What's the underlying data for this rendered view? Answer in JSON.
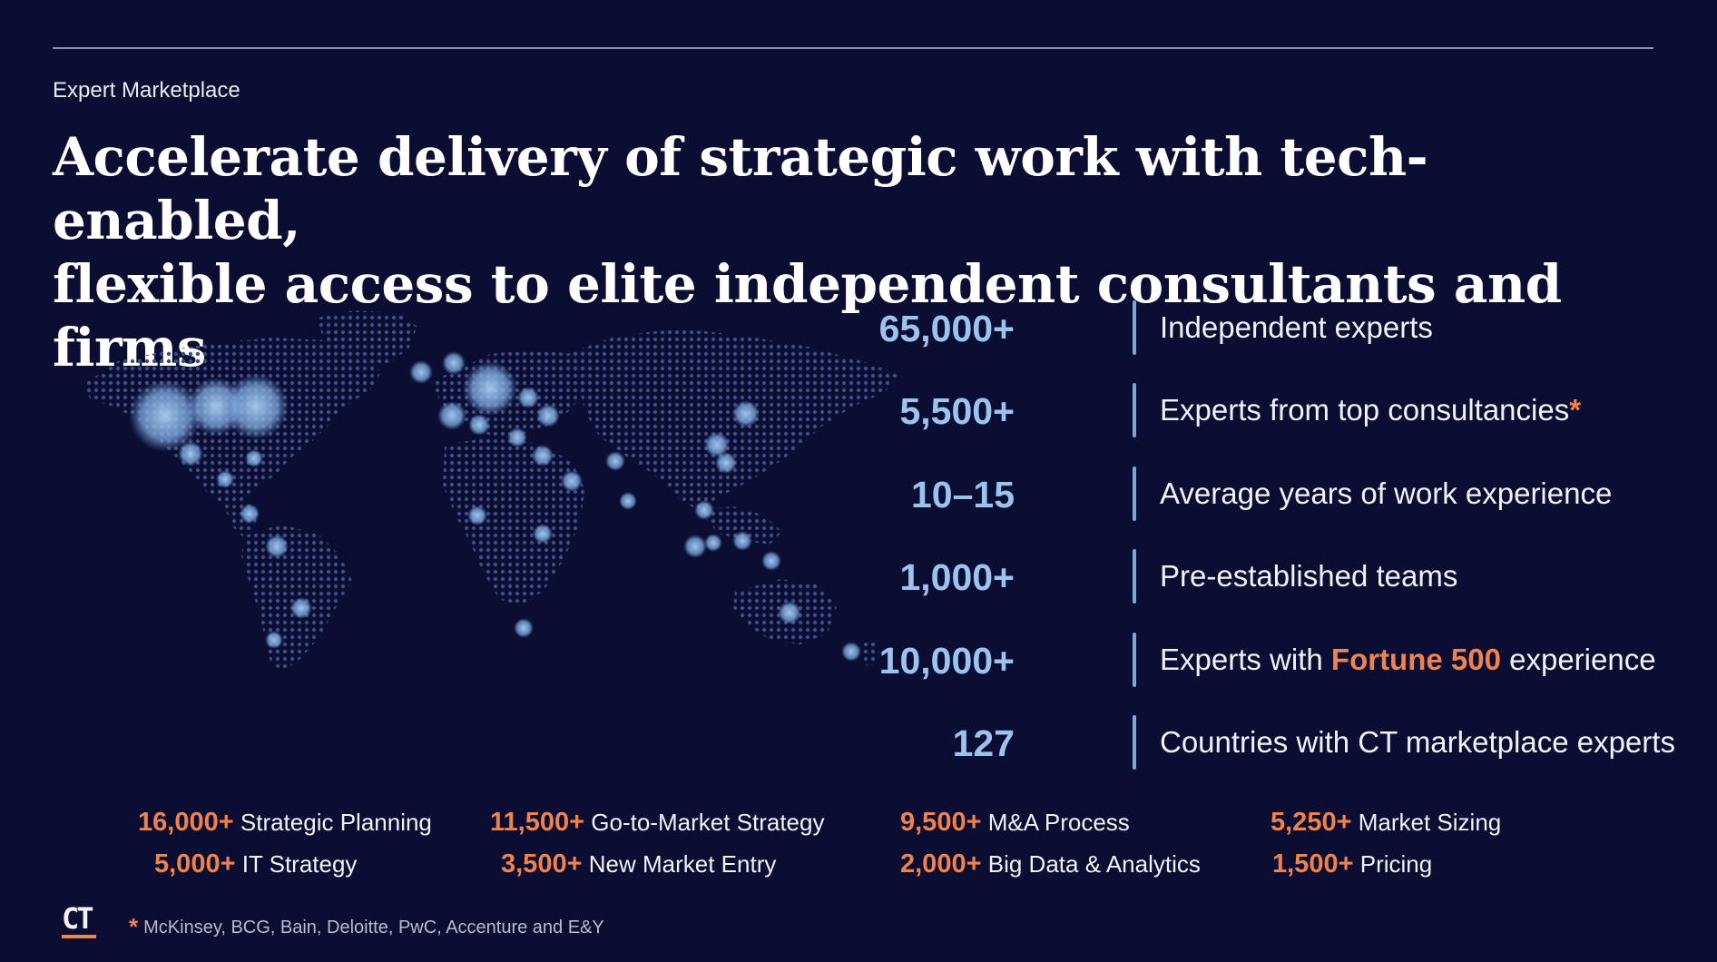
{
  "header": {
    "eyebrow": "Expert Marketplace",
    "headline_line1": "Accelerate delivery of strategic work with tech-enabled,",
    "headline_line2": "flexible access to elite independent consultants and firms"
  },
  "stats": [
    {
      "value": "65,000+",
      "label": "Independent experts"
    },
    {
      "value": "5,500+",
      "label": "Experts from top consultancies",
      "marker": "*"
    },
    {
      "value": "10–15",
      "label": "Average years of work experience"
    },
    {
      "value": "1,000+",
      "label": "Pre-established teams"
    },
    {
      "value": "10,000+",
      "label_pre": "Experts with ",
      "label_highlight": "Fortune 500",
      "label_post": " experience"
    },
    {
      "value": "127",
      "label": "Countries with CT marketplace experts"
    }
  ],
  "categories": [
    {
      "value": "16,000+",
      "label": "Strategic Planning"
    },
    {
      "value": "11,500+",
      "label": "Go-to-Market Strategy"
    },
    {
      "value": "9,500+",
      "label": "M&A Process"
    },
    {
      "value": "5,250+",
      "label": "Market Sizing"
    },
    {
      "value": "5,000+",
      "label": "IT Strategy"
    },
    {
      "value": "3,500+",
      "label": "New Market Entry"
    },
    {
      "value": "2,000+",
      "label": "Big Data & Analytics"
    },
    {
      "value": "1,500+",
      "label": "Pricing"
    }
  ],
  "footer": {
    "logo": "CT",
    "footnote_marker": "*",
    "footnote": "McKinsey, BCG, Bain, Deloitte, PwC, Accenture and E&Y"
  },
  "colors": {
    "background": "#0b0d33",
    "accent_orange": "#f0824c",
    "stat_blue": "#9cc3ee",
    "map_dot": "#3d4a7e",
    "hotspot": "#8ab8ec"
  },
  "map": {
    "icon": "world-map-icon"
  }
}
